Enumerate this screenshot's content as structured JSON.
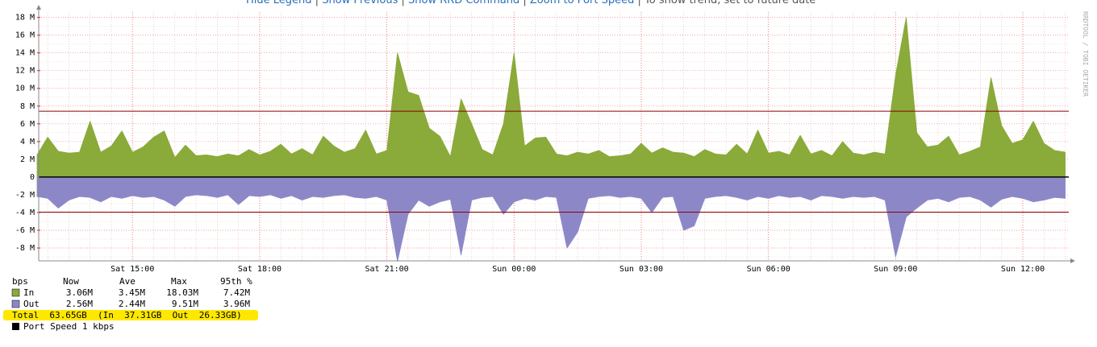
{
  "header": {
    "links": [
      "Hide Legend",
      "Show Previous",
      "Show RRD Command",
      "Zoom to Port Speed"
    ],
    "note": "To show trend, set to future date"
  },
  "watermark": "RRDTOOL / TOBI OETIKER",
  "chart_data": {
    "type": "area",
    "categories": [
      null,
      null,
      null,
      null,
      null,
      null,
      null,
      null,
      null,
      "Sat 15:00",
      null,
      null,
      null,
      null,
      null,
      null,
      null,
      null,
      null,
      null,
      null,
      "Sat 18:00",
      null,
      null,
      null,
      null,
      null,
      null,
      null,
      null,
      null,
      null,
      null,
      "Sat 21:00",
      null,
      null,
      null,
      null,
      null,
      null,
      null,
      null,
      null,
      null,
      null,
      "Sun 00:00",
      null,
      null,
      null,
      null,
      null,
      null,
      null,
      null,
      null,
      null,
      null,
      "Sun 03:00",
      null,
      null,
      null,
      null,
      null,
      null,
      null,
      null,
      null,
      null,
      null,
      "Sun 06:00",
      null,
      null,
      null,
      null,
      null,
      null,
      null,
      null,
      null,
      null,
      null,
      "Sun 09:00",
      null,
      null,
      null,
      null,
      null,
      null,
      null,
      null,
      null,
      null,
      null,
      "Sun 12:00",
      null,
      null,
      null,
      null
    ],
    "series": [
      {
        "name": "In",
        "color": "#8aaa3a",
        "values": [
          2.5,
          4.5,
          2.9,
          2.7,
          2.8,
          6.3,
          2.8,
          3.5,
          5.2,
          2.8,
          3.4,
          4.5,
          5.2,
          2.2,
          3.6,
          2.4,
          2.5,
          2.3,
          2.6,
          2.4,
          3.1,
          2.5,
          2.9,
          3.7,
          2.6,
          3.2,
          2.5,
          4.6,
          3.5,
          2.8,
          3.2,
          5.3,
          2.6,
          3.0,
          14.0,
          9.6,
          9.2,
          5.5,
          4.6,
          2.3,
          8.8,
          6.0,
          3.1,
          2.5,
          6.0,
          14.0,
          3.5,
          4.4,
          4.5,
          2.6,
          2.4,
          2.8,
          2.6,
          3.0,
          2.3,
          2.4,
          2.6,
          3.8,
          2.7,
          3.3,
          2.8,
          2.7,
          2.3,
          3.1,
          2.6,
          2.5,
          3.7,
          2.6,
          5.3,
          2.7,
          2.9,
          2.5,
          4.7,
          2.6,
          3.0,
          2.4,
          4.0,
          2.7,
          2.5,
          2.8,
          2.6,
          11.5,
          18.0,
          5.0,
          3.4,
          3.6,
          4.6,
          2.5,
          2.9,
          3.4,
          11.2,
          5.8,
          3.8,
          4.2,
          6.3,
          3.8,
          3.0,
          2.8
        ]
      },
      {
        "name": "Out",
        "color": "#8c88c8",
        "values": [
          -2.2,
          -2.4,
          -3.5,
          -2.6,
          -2.2,
          -2.3,
          -2.8,
          -2.2,
          -2.4,
          -2.1,
          -2.3,
          -2.2,
          -2.6,
          -3.3,
          -2.2,
          -2.0,
          -2.1,
          -2.3,
          -2.0,
          -3.1,
          -2.1,
          -2.2,
          -2.0,
          -2.4,
          -2.1,
          -2.6,
          -2.2,
          -2.3,
          -2.1,
          -2.0,
          -2.3,
          -2.4,
          -2.2,
          -2.6,
          -9.5,
          -4.2,
          -2.6,
          -3.3,
          -2.8,
          -2.5,
          -8.8,
          -2.6,
          -2.3,
          -2.2,
          -4.2,
          -2.8,
          -2.4,
          -2.6,
          -2.2,
          -2.3,
          -8.0,
          -6.2,
          -2.4,
          -2.2,
          -2.1,
          -2.3,
          -2.2,
          -2.4,
          -4.0,
          -2.3,
          -2.2,
          -6.0,
          -5.5,
          -2.4,
          -2.2,
          -2.1,
          -2.3,
          -2.6,
          -2.2,
          -2.4,
          -2.1,
          -2.3,
          -2.2,
          -2.6,
          -2.1,
          -2.2,
          -2.4,
          -2.2,
          -2.3,
          -2.2,
          -2.6,
          -9.0,
          -4.5,
          -3.5,
          -2.6,
          -2.4,
          -2.8,
          -2.3,
          -2.2,
          -2.6,
          -3.4,
          -2.5,
          -2.2,
          -2.4,
          -2.8,
          -2.6,
          -2.3,
          -2.4
        ]
      }
    ],
    "ylim": [
      -9.45,
      18.6
    ],
    "yticks": [
      {
        "value": -8,
        "label": "-8 M"
      },
      {
        "value": -6,
        "label": "-6 M"
      },
      {
        "value": -4,
        "label": "-4 M"
      },
      {
        "value": -2,
        "label": "-2 M"
      },
      0,
      {
        "value": 2,
        "label": "2 M"
      },
      {
        "value": 4,
        "label": "4 M"
      },
      {
        "value": 6,
        "label": "6 M"
      },
      {
        "value": 8,
        "label": "8 M"
      },
      {
        "value": 10,
        "label": "10 M"
      },
      {
        "value": 12,
        "label": "12 M"
      },
      {
        "value": 14,
        "label": "14 M"
      },
      {
        "value": 16,
        "label": "16 M"
      },
      {
        "value": 18,
        "label": "18 M"
      }
    ],
    "grid": true,
    "percentile_lines": [
      7.42,
      -3.96
    ],
    "percentile_color": "#8b0000",
    "legend_header": [
      "bps",
      "Now",
      "Ave",
      "Max",
      "95th %"
    ],
    "legend_stats": [
      [
        "3.06M",
        "3.45M",
        "18.03M",
        "7.42M"
      ],
      [
        "2.56M",
        "2.44M",
        "9.51M",
        "3.96M"
      ]
    ],
    "total": "Total  63.65GB  (In  37.31GB  Out  26.33GB)",
    "port_speed": {
      "label": "Port Speed 1 kbps",
      "color": "#000000"
    }
  }
}
